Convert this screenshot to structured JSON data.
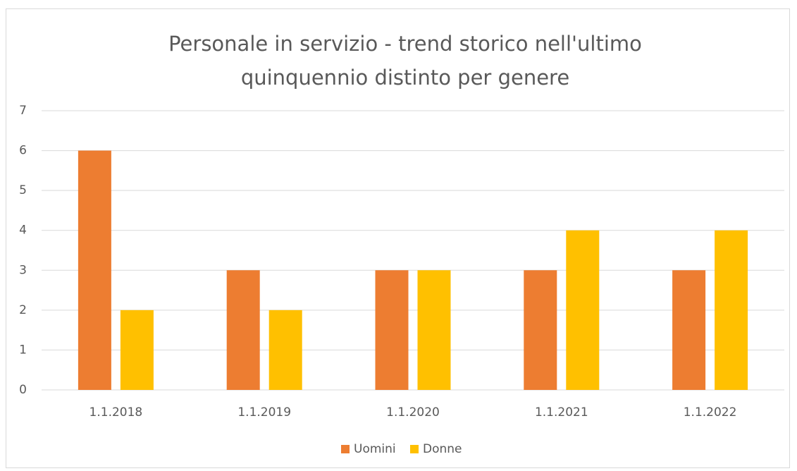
{
  "chart_data": {
    "type": "bar",
    "title": "Personale in servizio - trend storico nell'ultimo quinquennio distinto per genere",
    "categories": [
      "1.1.2018",
      "1.1.2019",
      "1.1.2020",
      "1.1.2021",
      "1.1.2022"
    ],
    "series": [
      {
        "name": "Uomini",
        "color": "#ed7d31",
        "values": [
          6,
          3,
          3,
          3,
          3
        ]
      },
      {
        "name": "Donne",
        "color": "#ffc000",
        "values": [
          2,
          2,
          3,
          4,
          4
        ]
      }
    ],
    "ylim": [
      0,
      7
    ],
    "yticks": [
      0,
      1,
      2,
      3,
      4,
      5,
      6,
      7
    ],
    "grid": true,
    "legend": "bottom"
  }
}
